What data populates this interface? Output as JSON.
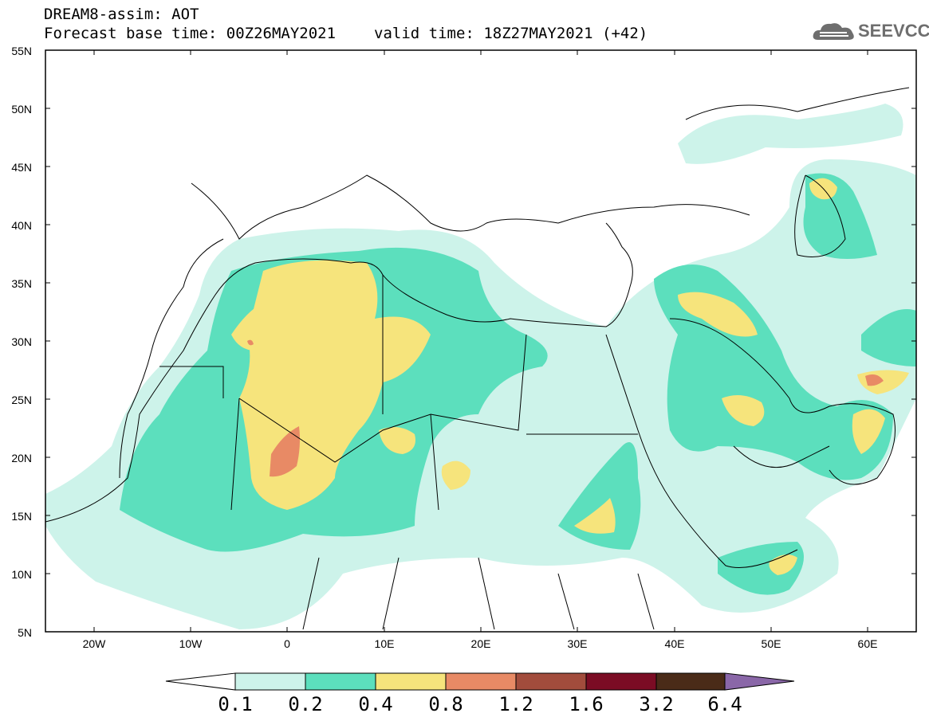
{
  "header": {
    "line1": "DREAM8-assim: AOT",
    "base_time_label": "Forecast base time: 00Z26MAY2021",
    "valid_time_label": "valid time: 18Z27MAY2021 (+42)"
  },
  "logo": {
    "text": "SEEVCCC",
    "icon": "cloud-icon"
  },
  "map": {
    "lon_range": [
      -25,
      65
    ],
    "lat_range": [
      5,
      55
    ],
    "lat_labels": [
      "55N",
      "50N",
      "45N",
      "40N",
      "35N",
      "30N",
      "25N",
      "20N",
      "15N",
      "10N",
      "5N"
    ],
    "lon_labels": [
      "20W",
      "10W",
      "0",
      "10E",
      "20E",
      "30E",
      "40E",
      "50E",
      "60E"
    ],
    "colors": {
      "c01": "#cdf3ea",
      "c02": "#5cdfbd",
      "c04": "#f6e47c",
      "c08": "#e88a65",
      "c12": "#a24c3c",
      "c16": "#7b0c24",
      "c32": "#4a2b18",
      "c64": "#8a67a8"
    }
  },
  "colorbar": {
    "labels": [
      "0.1",
      "0.2",
      "0.4",
      "0.8",
      "1.2",
      "1.6",
      "3.2",
      "6.4"
    ],
    "colors": [
      "#cdf3ea",
      "#5cdfbd",
      "#f6e47c",
      "#e88a65",
      "#a24c3c",
      "#7b0c24",
      "#4a2b18"
    ],
    "under_color": "#ffffff",
    "over_color": "#8a67a8"
  }
}
